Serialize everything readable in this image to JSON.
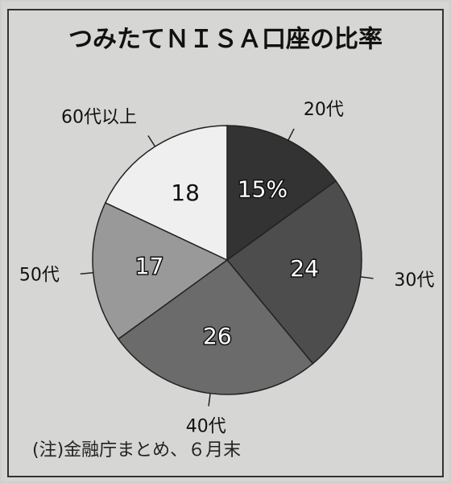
{
  "chart_data": {
    "type": "pie",
    "title": "つみたてＮＩＳＡ口座の比率",
    "categories": [
      "20代",
      "30代",
      "40代",
      "50代",
      "60代以上"
    ],
    "values": [
      15,
      24,
      26,
      17,
      18
    ],
    "value_labels": [
      "15%",
      "24",
      "26",
      "17",
      "18"
    ],
    "colors": [
      "#333333",
      "#4d4d4d",
      "#6b6b6b",
      "#999999",
      "#efefef"
    ],
    "note": "(注)金融庁まとめ、６月末"
  }
}
